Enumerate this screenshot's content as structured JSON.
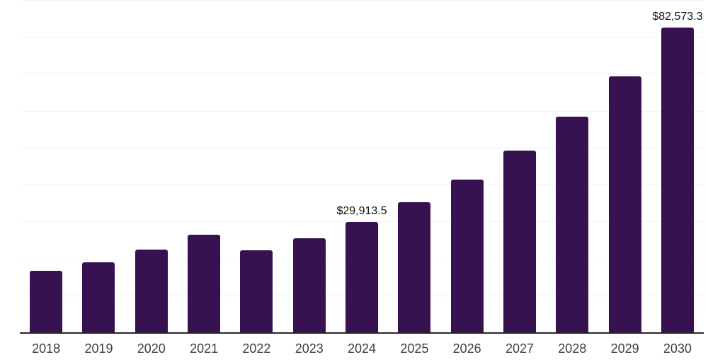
{
  "chart_data": {
    "type": "bar",
    "title": "",
    "xlabel": "",
    "ylabel": "",
    "categories": [
      "2018",
      "2019",
      "2020",
      "2021",
      "2022",
      "2023",
      "2024",
      "2025",
      "2026",
      "2027",
      "2028",
      "2029",
      "2030"
    ],
    "values": [
      16600,
      18900,
      22400,
      26400,
      22300,
      25500,
      29913.5,
      35200,
      41400,
      49200,
      58500,
      69400,
      82573.3
    ],
    "data_labels": [
      {
        "category": "2024",
        "text": "$29,913.5"
      },
      {
        "category": "2030",
        "text": "$82,573.3"
      }
    ],
    "ylim": [
      0,
      90000
    ],
    "gridline_interval": 10000,
    "grid": "horizontal-only",
    "y_tick_labels_visible": false,
    "legend": "none",
    "colors": {
      "bar": "#371250",
      "axis_line": "#262626",
      "gridline": "#f2f2f2",
      "data_label_text": "#111111",
      "tick_label_text": "#404040",
      "background": "#ffffff"
    }
  }
}
